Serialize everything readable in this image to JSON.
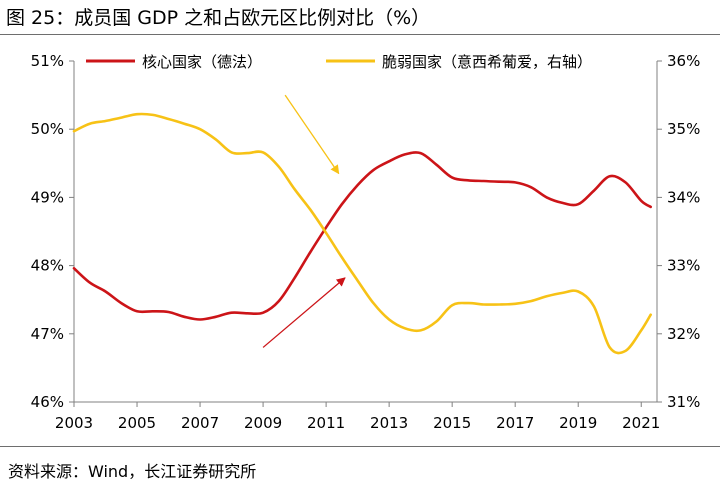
{
  "figure": {
    "title": "图 25：成员国 GDP 之和占欧元区比例对比（%）",
    "source": "资料来源：Wind，长江证券研究所"
  },
  "colors": {
    "core": "#cc1418",
    "periphery": "#f7c216",
    "axis": "#808080"
  },
  "chart_data": {
    "type": "line",
    "title": "成员国 GDP 之和占欧元区比例对比（%）",
    "xlabel": "",
    "ylabel": "",
    "xlim": [
      2003,
      2021.5
    ],
    "x_ticks": [
      2003,
      2005,
      2007,
      2009,
      2011,
      2013,
      2015,
      2017,
      2019,
      2021
    ],
    "x_tick_labels": [
      "2003",
      "2005",
      "2007",
      "2009",
      "2011",
      "2013",
      "2015",
      "2017",
      "2019",
      "2021"
    ],
    "ylim_left": [
      46,
      51
    ],
    "y_ticks_left": [
      46,
      47,
      48,
      49,
      50,
      51
    ],
    "y_tick_labels_left": [
      "46%",
      "47%",
      "48%",
      "49%",
      "50%",
      "51%"
    ],
    "ylim_right": [
      31,
      36
    ],
    "y_ticks_right": [
      31,
      32,
      33,
      34,
      35,
      36
    ],
    "y_tick_labels_right": [
      "31%",
      "32%",
      "33%",
      "34%",
      "35%",
      "36%"
    ],
    "grid": false,
    "legend_position": "top",
    "series": [
      {
        "name": "核心国家（德法）",
        "axis": "left",
        "color": "#cc1418",
        "x": [
          2003,
          2003.5,
          2004,
          2004.5,
          2005,
          2005.5,
          2006,
          2006.5,
          2007,
          2007.5,
          2008,
          2008.5,
          2009,
          2009.5,
          2010,
          2010.5,
          2011,
          2011.5,
          2012,
          2012.5,
          2013,
          2013.5,
          2014,
          2014.5,
          2015,
          2015.5,
          2016,
          2016.5,
          2017,
          2017.5,
          2018,
          2018.5,
          2019,
          2019.5,
          2020,
          2020.5,
          2021,
          2021.3
        ],
        "values": [
          47.96,
          47.75,
          47.62,
          47.45,
          47.33,
          47.33,
          47.32,
          47.25,
          47.21,
          47.25,
          47.31,
          47.3,
          47.31,
          47.48,
          47.82,
          48.2,
          48.56,
          48.9,
          49.18,
          49.4,
          49.53,
          49.63,
          49.65,
          49.48,
          49.29,
          49.25,
          49.24,
          49.23,
          49.22,
          49.15,
          49.0,
          48.92,
          48.9,
          49.1,
          49.31,
          49.22,
          48.95,
          48.86
        ]
      },
      {
        "name": "脆弱国家（意西希葡爱，右轴）",
        "axis": "right",
        "color": "#f7c216",
        "x": [
          2003,
          2003.5,
          2004,
          2004.5,
          2005,
          2005.5,
          2006,
          2006.5,
          2007,
          2007.5,
          2008,
          2008.5,
          2009,
          2009.5,
          2010,
          2010.5,
          2011,
          2011.5,
          2012,
          2012.5,
          2013,
          2013.5,
          2014,
          2014.5,
          2015,
          2015.5,
          2016,
          2016.5,
          2017,
          2017.5,
          2018,
          2018.5,
          2019,
          2019.5,
          2020,
          2020.5,
          2021,
          2021.3
        ],
        "values": [
          34.97,
          35.08,
          35.12,
          35.17,
          35.22,
          35.21,
          35.15,
          35.08,
          35.0,
          34.85,
          34.66,
          34.65,
          34.66,
          34.45,
          34.12,
          33.82,
          33.48,
          33.12,
          32.78,
          32.45,
          32.21,
          32.08,
          32.05,
          32.18,
          32.42,
          32.45,
          32.43,
          32.43,
          32.44,
          32.48,
          32.55,
          32.6,
          32.62,
          32.4,
          31.8,
          31.75,
          32.05,
          32.28
        ]
      }
    ],
    "annotations": [
      {
        "type": "arrow",
        "color": "#f7c216",
        "axis": "left",
        "from": [
          2009.7,
          50.5
        ],
        "to": [
          2011.4,
          49.35
        ]
      },
      {
        "type": "arrow",
        "color": "#cc1418",
        "axis": "left",
        "from": [
          2009.0,
          46.8
        ],
        "to": [
          2011.6,
          47.82
        ]
      }
    ]
  }
}
